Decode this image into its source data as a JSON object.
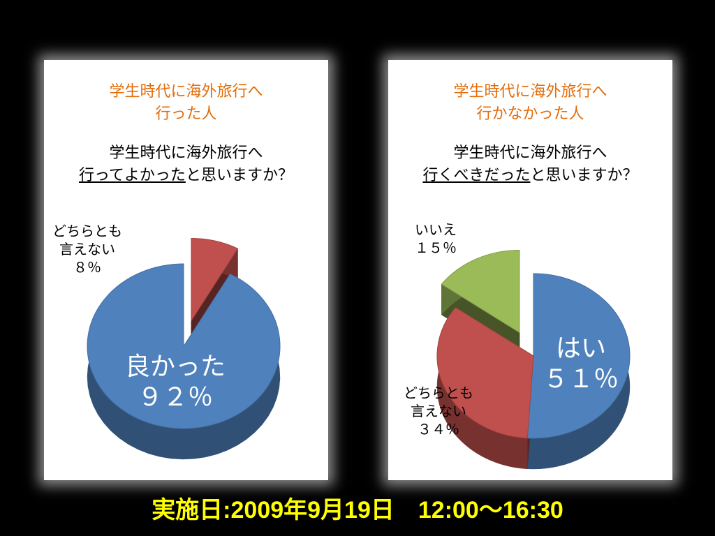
{
  "colors": {
    "title": "#e36c09",
    "footer": "#ffff00",
    "blue": "#4f81bd",
    "red": "#c0504d",
    "green": "#9bbb59"
  },
  "left": {
    "title_line1": "学生時代に海外旅行へ",
    "title_line2": "行った人",
    "question_line1": "学生時代に海外旅行へ",
    "question_underlined": "行ってよかった",
    "question_rest": "と思いますか？"
  },
  "right": {
    "title_line1": "学生時代に海外旅行へ",
    "title_line2": "行かなかった人",
    "question_line1": "学生時代に海外旅行へ",
    "question_underlined": "行くべきだった",
    "question_rest": "と思いますか？"
  },
  "chart_data": [
    {
      "type": "pie",
      "title": "学生時代に海外旅行へ行った人",
      "slices": [
        {
          "lines": [
            "良かった",
            "９２％"
          ],
          "value": 92,
          "color": "#4f81bd"
        },
        {
          "lines": [
            "どちらとも",
            "言えない",
            "８％"
          ],
          "value": 8,
          "color": "#c0504d",
          "exploded": true
        }
      ]
    },
    {
      "type": "pie",
      "title": "学生時代に海外旅行へ行かなかった人",
      "slices": [
        {
          "lines": [
            "はい",
            "５１％"
          ],
          "value": 51,
          "color": "#4f81bd"
        },
        {
          "lines": [
            "どちらとも",
            "言えない",
            "３４％"
          ],
          "value": 34,
          "color": "#c0504d"
        },
        {
          "lines": [
            "いいえ",
            "１５％"
          ],
          "value": 15,
          "color": "#9bbb59",
          "exploded": true
        }
      ]
    }
  ],
  "footer": {
    "text": "実施日:2009年9月19日　12:00～16:30"
  }
}
